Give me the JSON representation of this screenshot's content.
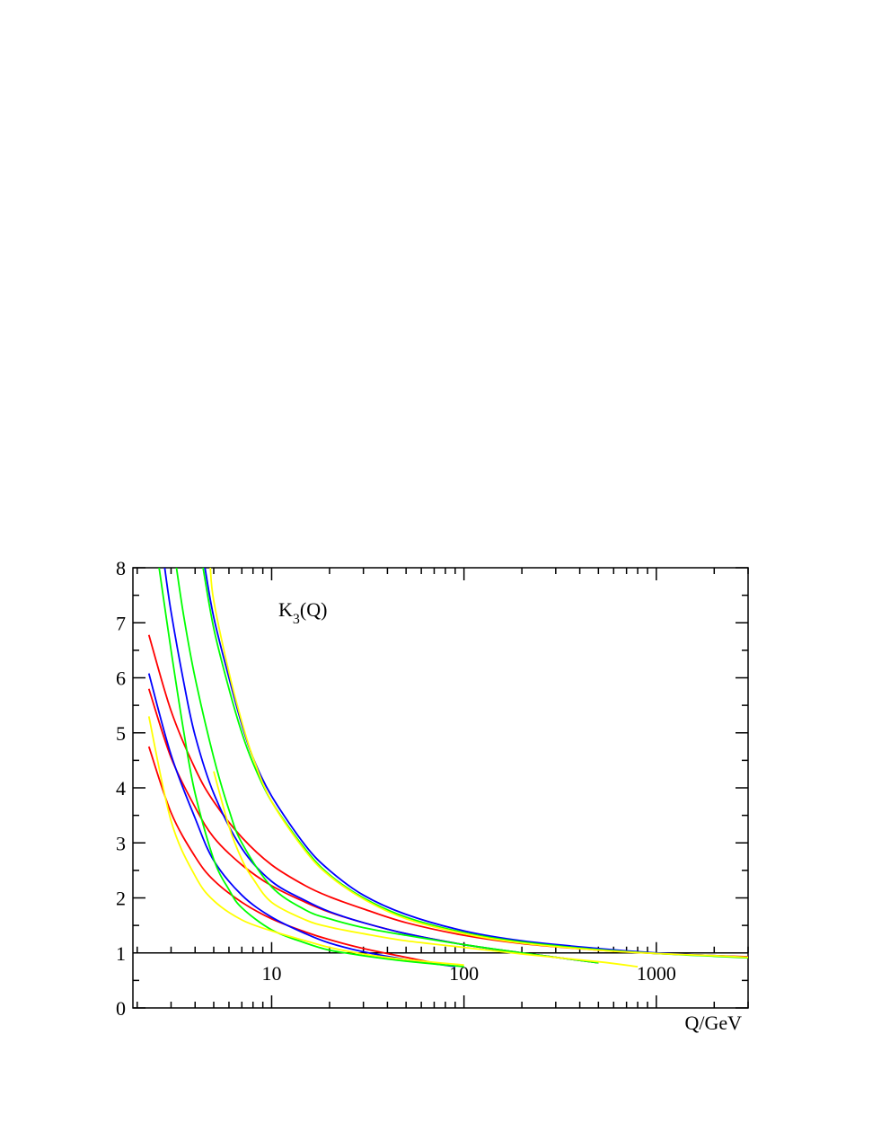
{
  "chart_data": {
    "type": "line",
    "annotation": {
      "main": "K",
      "sub": "3",
      "suffix": "(Q)"
    },
    "xlabel": "Q/GeV",
    "ylabel": "",
    "xscale": "log",
    "xlim": [
      1.9,
      3000
    ],
    "ylim": [
      0,
      8
    ],
    "reference_line_y": 1,
    "x_ticks": [
      10,
      100,
      1000
    ],
    "x_tick_labels": [
      "10",
      "100",
      "1000"
    ],
    "y_ticks": [
      0,
      1,
      2,
      3,
      4,
      5,
      6,
      7,
      8
    ],
    "y_tick_labels": [
      "0",
      "1",
      "2",
      "3",
      "4",
      "5",
      "6",
      "7",
      "8"
    ],
    "grid": false,
    "legend": "none",
    "series": [
      {
        "color": "#ff0000",
        "points": [
          [
            2.3,
            6.78
          ],
          [
            3,
            5.4
          ],
          [
            4,
            4.35
          ],
          [
            5,
            3.75
          ],
          [
            7,
            3.1
          ],
          [
            10,
            2.6
          ],
          [
            15,
            2.22
          ],
          [
            20,
            2.02
          ],
          [
            30,
            1.8
          ],
          [
            50,
            1.55
          ],
          [
            100,
            1.32
          ],
          [
            200,
            1.17
          ],
          [
            500,
            1.05
          ],
          [
            1000,
            0.99
          ],
          [
            2000,
            0.95
          ],
          [
            3000,
            0.93
          ]
        ]
      },
      {
        "color": "#ff0000",
        "points": [
          [
            2.3,
            5.8
          ],
          [
            3,
            4.55
          ],
          [
            4,
            3.65
          ],
          [
            5,
            3.1
          ],
          [
            7,
            2.6
          ],
          [
            10,
            2.22
          ],
          [
            15,
            1.92
          ],
          [
            20,
            1.74
          ],
          [
            30,
            1.55
          ],
          [
            50,
            1.35
          ],
          [
            100,
            1.15
          ],
          [
            200,
            1.0
          ],
          [
            500,
            0.82
          ]
        ]
      },
      {
        "color": "#ff0000",
        "points": [
          [
            2.3,
            4.75
          ],
          [
            3,
            3.55
          ],
          [
            4,
            2.75
          ],
          [
            5,
            2.32
          ],
          [
            7,
            1.92
          ],
          [
            10,
            1.62
          ],
          [
            15,
            1.38
          ],
          [
            20,
            1.24
          ],
          [
            30,
            1.08
          ],
          [
            50,
            0.92
          ],
          [
            80,
            0.78
          ]
        ]
      },
      {
        "color": "#0000ff",
        "points": [
          [
            2.3,
            6.08
          ],
          [
            3,
            4.6
          ],
          [
            4,
            3.45
          ],
          [
            5,
            2.68
          ],
          [
            7,
            2.05
          ],
          [
            10,
            1.65
          ],
          [
            15,
            1.35
          ],
          [
            20,
            1.18
          ],
          [
            30,
            1.02
          ],
          [
            50,
            0.88
          ],
          [
            90,
            0.75
          ]
        ]
      },
      {
        "color": "#0000ff",
        "points": [
          [
            2.78,
            8.0
          ],
          [
            3,
            7.2
          ],
          [
            3.5,
            5.9
          ],
          [
            4,
            4.95
          ],
          [
            5,
            3.9
          ],
          [
            7,
            2.9
          ],
          [
            10,
            2.3
          ],
          [
            15,
            1.95
          ],
          [
            20,
            1.75
          ],
          [
            30,
            1.55
          ],
          [
            50,
            1.35
          ],
          [
            100,
            1.15
          ],
          [
            200,
            1.0
          ],
          [
            500,
            0.82
          ]
        ]
      },
      {
        "color": "#0000ff",
        "points": [
          [
            4.5,
            8.0
          ],
          [
            5,
            7.1
          ],
          [
            6,
            6.0
          ],
          [
            7,
            5.15
          ],
          [
            8,
            4.55
          ],
          [
            10,
            3.85
          ],
          [
            15,
            2.95
          ],
          [
            20,
            2.5
          ],
          [
            30,
            2.05
          ],
          [
            50,
            1.7
          ],
          [
            100,
            1.4
          ],
          [
            200,
            1.22
          ],
          [
            500,
            1.08
          ],
          [
            1000,
            1.0
          ],
          [
            2000,
            0.95
          ],
          [
            3000,
            0.92
          ]
        ]
      },
      {
        "color": "#00ff00",
        "points": [
          [
            2.6,
            8.0
          ],
          [
            3,
            6.5
          ],
          [
            3.5,
            5.0
          ],
          [
            4,
            3.9
          ],
          [
            5,
            2.7
          ],
          [
            6,
            2.15
          ],
          [
            7,
            1.82
          ],
          [
            10,
            1.42
          ],
          [
            15,
            1.18
          ],
          [
            20,
            1.05
          ],
          [
            30,
            0.95
          ],
          [
            50,
            0.85
          ],
          [
            100,
            0.75
          ]
        ]
      },
      {
        "color": "#00ff00",
        "points": [
          [
            3.2,
            8.0
          ],
          [
            3.5,
            7.1
          ],
          [
            4,
            6.0
          ],
          [
            5,
            4.55
          ],
          [
            6,
            3.6
          ],
          [
            7,
            3.0
          ],
          [
            10,
            2.2
          ],
          [
            15,
            1.78
          ],
          [
            20,
            1.62
          ],
          [
            30,
            1.46
          ],
          [
            50,
            1.32
          ],
          [
            100,
            1.15
          ],
          [
            200,
            1.0
          ],
          [
            500,
            0.82
          ]
        ]
      },
      {
        "color": "#00ff00",
        "points": [
          [
            4.4,
            8.0
          ],
          [
            5,
            6.9
          ],
          [
            6,
            5.8
          ],
          [
            7,
            5.0
          ],
          [
            8,
            4.45
          ],
          [
            10,
            3.75
          ],
          [
            15,
            2.88
          ],
          [
            20,
            2.42
          ],
          [
            30,
            2.0
          ],
          [
            50,
            1.65
          ],
          [
            100,
            1.37
          ],
          [
            200,
            1.2
          ],
          [
            500,
            1.06
          ],
          [
            1000,
            0.99
          ],
          [
            2000,
            0.94
          ],
          [
            3000,
            0.91
          ]
        ]
      },
      {
        "color": "#ffff00",
        "points": [
          [
            2.3,
            5.3
          ],
          [
            3,
            3.4
          ],
          [
            4,
            2.4
          ],
          [
            5,
            1.95
          ],
          [
            7,
            1.6
          ],
          [
            10,
            1.4
          ],
          [
            15,
            1.22
          ],
          [
            20,
            1.1
          ],
          [
            30,
            0.98
          ],
          [
            50,
            0.88
          ],
          [
            100,
            0.78
          ]
        ]
      },
      {
        "color": "#ffff00",
        "points": [
          [
            4.8,
            8.0
          ],
          [
            5,
            7.4
          ],
          [
            6,
            6.1
          ],
          [
            7,
            5.2
          ],
          [
            8,
            4.55
          ],
          [
            10,
            3.75
          ],
          [
            15,
            2.85
          ],
          [
            20,
            2.4
          ],
          [
            30,
            1.98
          ],
          [
            50,
            1.62
          ],
          [
            100,
            1.35
          ],
          [
            200,
            1.18
          ],
          [
            500,
            1.05
          ],
          [
            1000,
            0.99
          ],
          [
            2000,
            0.95
          ],
          [
            3000,
            0.92
          ]
        ]
      },
      {
        "color": "#ffff00",
        "points": [
          [
            5,
            4.3
          ],
          [
            6,
            3.3
          ],
          [
            7,
            2.7
          ],
          [
            8,
            2.35
          ],
          [
            10,
            1.92
          ],
          [
            15,
            1.6
          ],
          [
            20,
            1.47
          ],
          [
            30,
            1.35
          ],
          [
            50,
            1.22
          ],
          [
            100,
            1.1
          ],
          [
            200,
            0.98
          ],
          [
            500,
            0.84
          ],
          [
            800,
            0.75
          ]
        ]
      }
    ]
  }
}
